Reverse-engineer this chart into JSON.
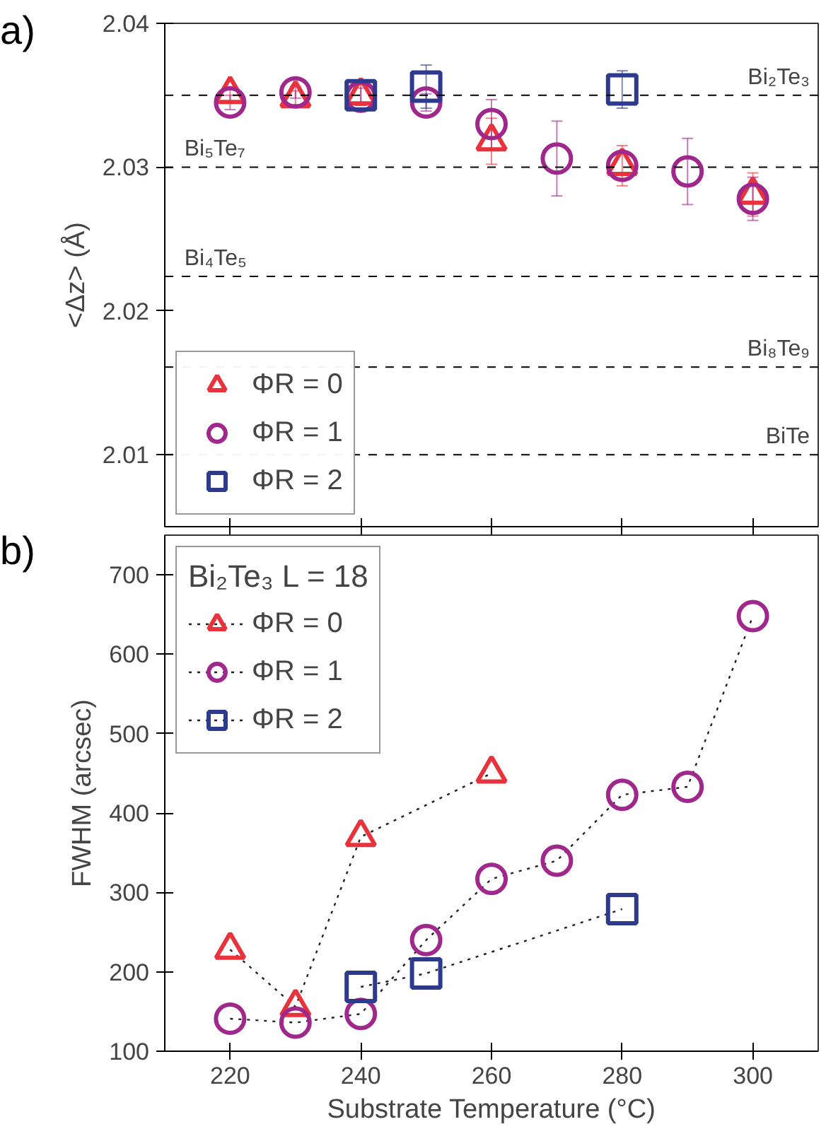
{
  "chart_data": [
    {
      "type": "scatter",
      "ylabel": "<Δz> (Å)",
      "xlim": [
        210,
        310
      ],
      "xticks": [
        220,
        240,
        260,
        280,
        300
      ],
      "ylim": [
        2.005,
        2.04
      ],
      "yticks": [
        2.01,
        2.02,
        2.03,
        2.04
      ],
      "tick_labels": "y",
      "grid": false,
      "legend": "bottom left",
      "annotations": [
        "a)"
      ],
      "ref_lines": [
        {
          "axis": "y",
          "value": 2.035,
          "label": "Bi₂Te₃",
          "color": "#000000",
          "line_style": "dashed"
        },
        {
          "axis": "y",
          "value": 2.03,
          "label": "Bi₅Te₇",
          "color": "#000000",
          "line_style": "dashed"
        },
        {
          "axis": "y",
          "value": 2.0224,
          "label": "Bi₄Te₅",
          "color": "#000000",
          "line_style": "dashed"
        },
        {
          "axis": "y",
          "value": 2.0161,
          "label": "Bi₈Te₉",
          "color": "#000000",
          "line_style": "dashed"
        },
        {
          "axis": "y",
          "value": 2.01,
          "label": "BiTe",
          "color": "#000000",
          "line_style": "dashed"
        }
      ],
      "series": [
        {
          "name": "ΦR = 0",
          "color": "#e8323c",
          "marker": "triangle",
          "x": [
            220,
            230,
            240,
            260,
            280,
            300
          ],
          "values": [
            2.0351,
            2.0348,
            2.035,
            2.0318,
            2.0301,
            2.0281
          ],
          "errors": [
            0.0005,
            0.0005,
            0.0007,
            0.0016,
            0.0014,
            0.0015
          ]
        },
        {
          "name": "ΦR = 1",
          "color": "#a0288c",
          "marker": "circle",
          "x": [
            220,
            230,
            240,
            250,
            260,
            270,
            280,
            290,
            300
          ],
          "values": [
            2.0345,
            2.0352,
            2.0349,
            2.0345,
            2.033,
            2.0306,
            2.0301,
            2.0297,
            2.0278
          ],
          "errors": [
            0.0005,
            0.0004,
            0.0006,
            0.0006,
            0.0017,
            0.0026,
            null,
            0.0023,
            0.0015
          ]
        },
        {
          "name": "ΦR = 2",
          "color": "#2e3a8c",
          "marker": "square",
          "x": [
            240,
            250,
            280
          ],
          "values": [
            2.035,
            2.0356,
            2.0354
          ],
          "errors": [
            null,
            0.0015,
            0.0013
          ]
        }
      ]
    },
    {
      "type": "line",
      "xlabel": "Substrate Temperature (°C)",
      "ylabel": "FWHM (arcsec)",
      "xlim": [
        210,
        310
      ],
      "xticks": [
        220,
        240,
        260,
        280,
        300
      ],
      "ylim": [
        100,
        750
      ],
      "yticks": [
        100,
        200,
        300,
        400,
        500,
        600,
        700
      ],
      "grid": false,
      "legend": "top left",
      "legend_title": "Bi₂Te₃ L = 18",
      "line_style": "dotted",
      "annotations": [
        "b)"
      ],
      "series": [
        {
          "name": "ΦR = 0",
          "color": "#e8323c",
          "marker": "triangle",
          "x": [
            220,
            230,
            240,
            260
          ],
          "values": [
            228,
            156,
            370,
            450
          ]
        },
        {
          "name": "ΦR = 1",
          "color": "#a0288c",
          "marker": "circle",
          "x": [
            220,
            230,
            240,
            250,
            260,
            270,
            280,
            290,
            300
          ],
          "values": [
            141,
            136,
            147,
            240,
            317,
            340,
            423,
            433,
            648
          ]
        },
        {
          "name": "ΦR = 2",
          "color": "#2e3a8c",
          "marker": "square",
          "x": [
            240,
            250,
            280
          ],
          "values": [
            181,
            198,
            279
          ]
        }
      ]
    }
  ]
}
